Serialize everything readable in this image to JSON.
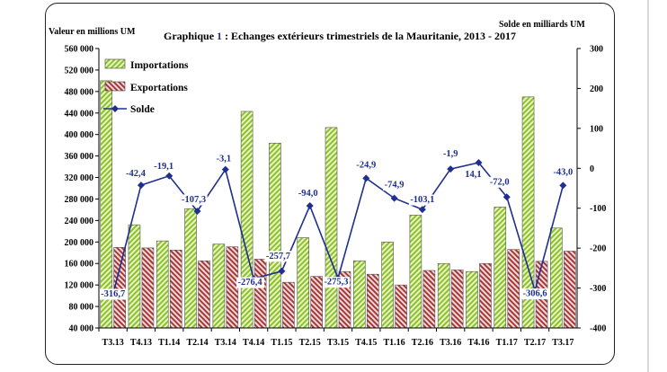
{
  "chart_data": {
    "type": "bar",
    "title_prefix": "Graphique ",
    "title_number": "1",
    "title_rest": " : Echanges extérieurs trimestriels de la Mauritanie, 2013 - 2017",
    "left_axis_label": "Valeur en millions UM",
    "right_axis_label": "Solde en milliards UM",
    "categories": [
      "T3.13",
      "T4.13",
      "T1.14",
      "T2.14",
      "T3.14",
      "T4.14",
      "T1.15",
      "T2.15",
      "T3.15",
      "T4.15",
      "T1.16",
      "T2.16",
      "T3.16",
      "T4.16",
      "T1.17",
      "T2.17",
      "T3.17"
    ],
    "series": [
      {
        "name": "Importations",
        "axis": "left",
        "kind": "bar",
        "color": "#9acd32",
        "values": [
          500000,
          232000,
          202000,
          262000,
          196000,
          443000,
          384000,
          208000,
          413000,
          165000,
          200000,
          250000,
          160000,
          145000,
          265000,
          470000,
          226000
        ]
      },
      {
        "name": "Exportations",
        "axis": "left",
        "kind": "bar",
        "color": "#b04040",
        "values": [
          190000,
          189000,
          185000,
          165000,
          191000,
          168000,
          125000,
          136000,
          145000,
          140000,
          120000,
          147000,
          148000,
          160000,
          186000,
          164000,
          183000
        ]
      },
      {
        "name": "Solde",
        "axis": "right",
        "kind": "line",
        "color": "#1f2f8f",
        "values": [
          -316.7,
          -42.4,
          -19.1,
          -107.3,
          -3.1,
          -276.4,
          -257.7,
          -94.0,
          -275.3,
          -24.9,
          -74.9,
          -103.1,
          -1.9,
          14.1,
          -72.0,
          -306.6,
          -43.0
        ],
        "labels": [
          "-316,7",
          "-42,4",
          "-19,1",
          "-107,3",
          "-3,1",
          "-276,4",
          "-257,7",
          "-94,0",
          "-275,3",
          "-24,9",
          "-74,9",
          "-103,1",
          "-1,9",
          "14,1",
          "-72,0",
          "-306,6",
          "-43,0"
        ]
      }
    ],
    "ylim_left": [
      40000,
      560000
    ],
    "yticks_left": [
      "40 000",
      "80 000",
      "120 000",
      "160 000",
      "200 000",
      "240 000",
      "280 000",
      "320 000",
      "360 000",
      "400 000",
      "440 000",
      "480 000",
      "520 000",
      "560 000"
    ],
    "ylim_right": [
      -400,
      300
    ],
    "yticks_right": [
      "-400",
      "-300",
      "-200",
      "-100",
      "0",
      "100",
      "200",
      "300"
    ],
    "legend_position": "top-left",
    "grid": false
  }
}
